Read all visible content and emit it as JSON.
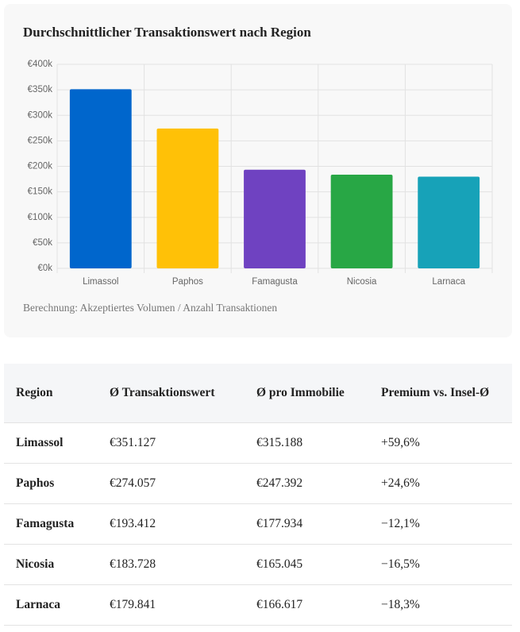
{
  "chart_data": {
    "type": "bar",
    "title": "Durchschnittlicher Transaktionswert nach Region",
    "categories": [
      "Limassol",
      "Paphos",
      "Famagusta",
      "Nicosia",
      "Larnaca"
    ],
    "values": [
      351127,
      274057,
      193412,
      183728,
      179841
    ],
    "colors": [
      "#0066cc",
      "#ffc107",
      "#6f42c1",
      "#28a745",
      "#17a2b8"
    ],
    "ylim": [
      0,
      400000
    ],
    "yticks": [
      {
        "value": 0,
        "label": "€0k"
      },
      {
        "value": 50000,
        "label": "€50k"
      },
      {
        "value": 100000,
        "label": "€100k"
      },
      {
        "value": 150000,
        "label": "€150k"
      },
      {
        "value": 200000,
        "label": "€200k"
      },
      {
        "value": 250000,
        "label": "€250k"
      },
      {
        "value": 300000,
        "label": "€300k"
      },
      {
        "value": 350000,
        "label": "€350k"
      },
      {
        "value": 400000,
        "label": "€400k"
      }
    ],
    "grid": true,
    "note": "Berechnung: Akzeptiertes Volumen / Anzahl Transaktionen"
  },
  "table": {
    "header": [
      "Region",
      "Ø Transaktionswert",
      "Ø pro Immobilie",
      "Premium vs. Insel-Ø"
    ],
    "rows": [
      [
        "Limassol",
        "€351.127",
        "€315.188",
        "+59,6%"
      ],
      [
        "Paphos",
        "€274.057",
        "€247.392",
        "+24,6%"
      ],
      [
        "Famagusta",
        "€193.412",
        "€177.934",
        "−12,1%"
      ],
      [
        "Nicosia",
        "€183.728",
        "€165.045",
        "−16,5%"
      ],
      [
        "Larnaca",
        "€179.841",
        "€166.617",
        "−18,3%"
      ]
    ]
  }
}
